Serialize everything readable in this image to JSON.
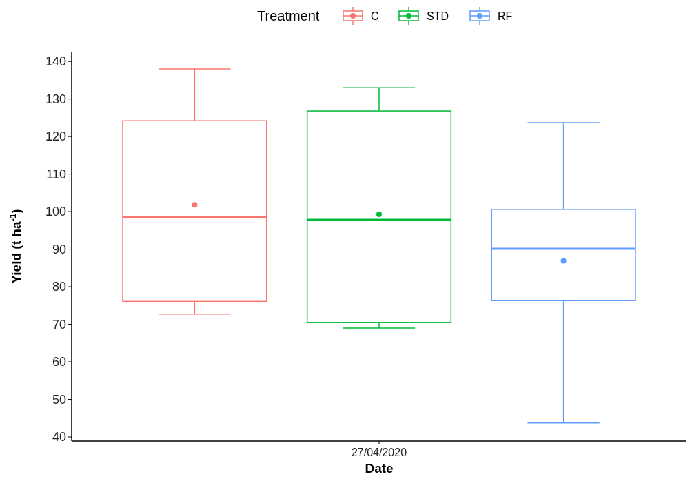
{
  "chart_data": {
    "type": "box",
    "xlabel": "Date",
    "ylabel": "Yield (t ha$^{-1}$)",
    "legend_title": "Treatment",
    "legend": "top",
    "grid": false,
    "categories": [
      "27/04/2020"
    ],
    "ylim": [
      38.9,
      142.6
    ],
    "yticks": [
      40,
      50,
      60,
      70,
      80,
      90,
      100,
      110,
      120,
      130,
      140
    ],
    "series": [
      {
        "name": "C",
        "color": "#f8766d",
        "boxes": [
          {
            "low": 72.7,
            "q1": 76.1,
            "median": 98.5,
            "q3": 124.2,
            "high": 138,
            "mean": 101.8
          }
        ]
      },
      {
        "name": "STD",
        "color": "#00ba38",
        "boxes": [
          {
            "low": 69,
            "q1": 70.5,
            "median": 97.8,
            "q3": 126.8,
            "high": 133,
            "mean": 99.3
          }
        ]
      },
      {
        "name": "RF",
        "color": "#619cff",
        "boxes": [
          {
            "low": 43.7,
            "q1": 76.3,
            "median": 90.1,
            "q3": 100.6,
            "high": 123.7,
            "mean": 86.9
          }
        ]
      }
    ]
  }
}
